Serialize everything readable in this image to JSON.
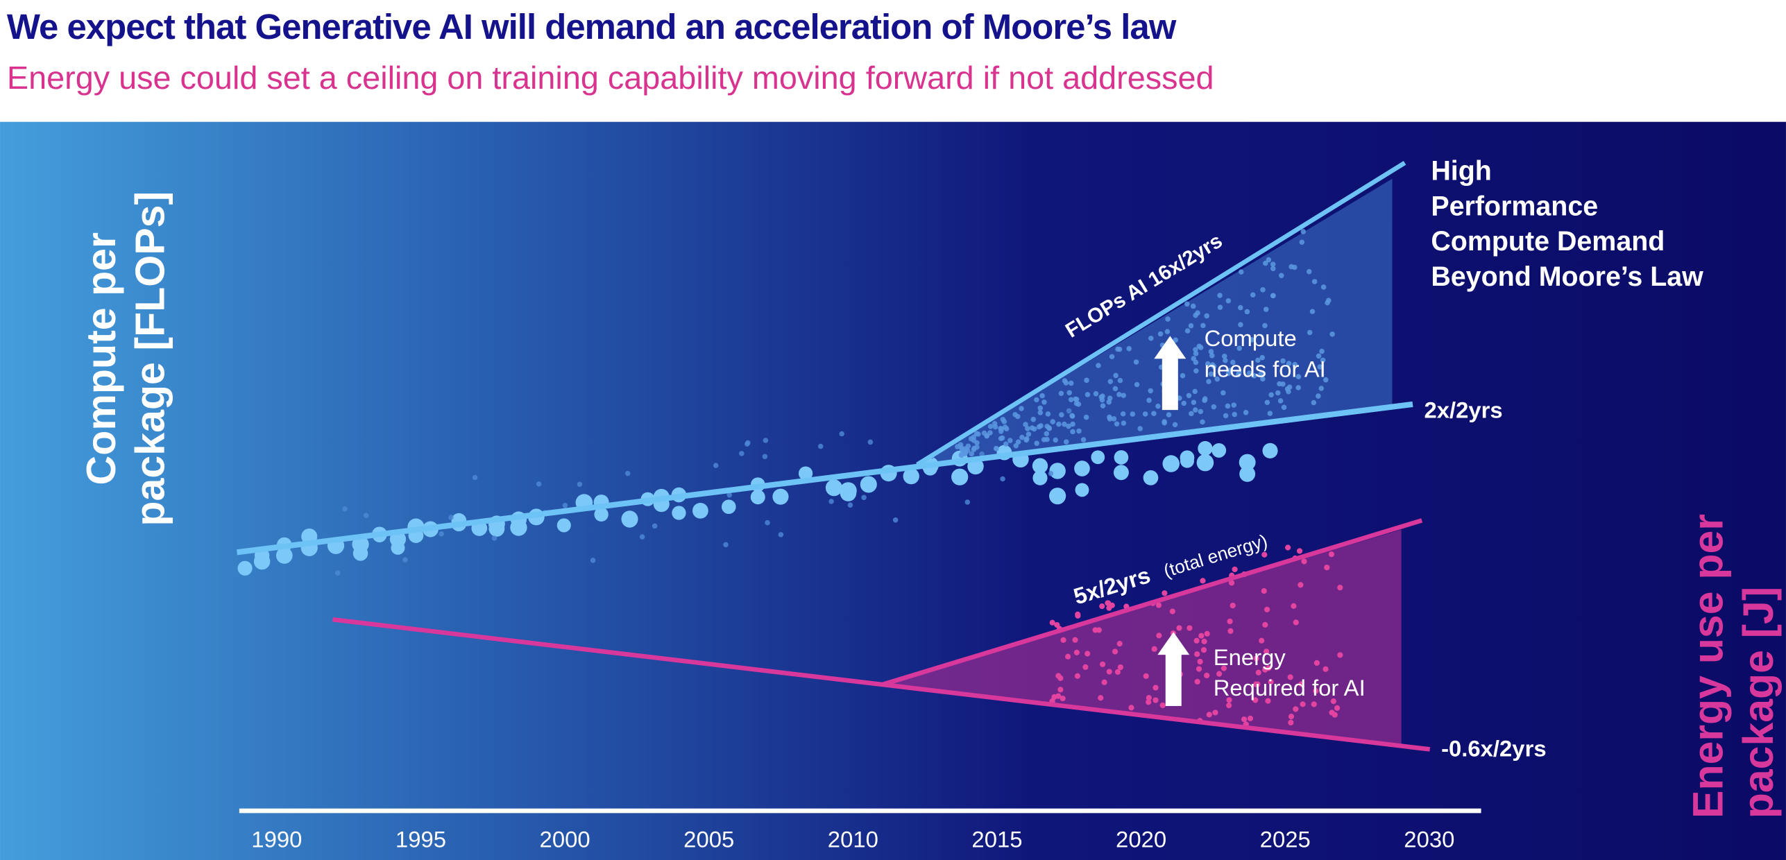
{
  "chart_data": {
    "type": "scatter",
    "title": "We expect that Generative AI will demand an acceleration of Moore’s law",
    "subtitle": "Energy use could set a ceiling on training capability moving forward if not addressed",
    "y_label": [
      "Compute per",
      "package [FLOPs]"
    ],
    "y2_label": [
      "Energy use per",
      "package [J]"
    ],
    "xlim": [
      1988.7,
      2031.8
    ],
    "xticks": [
      1990,
      1995,
      2000,
      2005,
      2010,
      2015,
      2020,
      2025,
      2030
    ],
    "annotations": {
      "high_performance": [
        "High",
        "Performance",
        "Compute Demand",
        "Beyond Moore’s Law"
      ],
      "rate_moore": "2x/2yrs",
      "rate_ai": "FLOPs AI 16x/2yrs",
      "compute_needs": [
        "Compute",
        "needs for AI"
      ],
      "rate_energy": "5x/2yrs",
      "rate_energy_note": "(total energy)",
      "energy_required": [
        "Energy",
        "Required for AI"
      ],
      "rate_energy_base": "-0.6x/2yrs"
    }
  }
}
